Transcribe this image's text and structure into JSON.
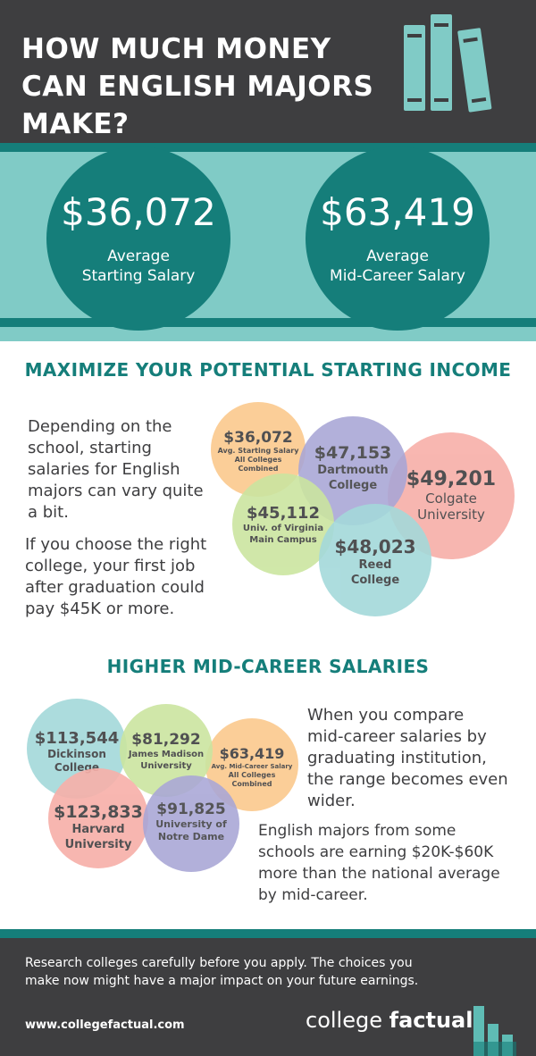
{
  "header": {
    "title": "HOW MUCH MONEY CAN ENGLISH MAJORS MAKE?"
  },
  "salaries": [
    {
      "amount": "$36,072",
      "label_line1": "Average",
      "label_line2": "Starting Salary"
    },
    {
      "amount": "$63,419",
      "label_line1": "Average",
      "label_line2": "Mid-Career Salary"
    }
  ],
  "starting": {
    "title": "MAXIMIZE YOUR POTENTIAL STARTING INCOME",
    "para1_lines": [
      "Depending on the",
      "school, starting",
      "salaries for English",
      "majors can vary quite",
      "a bit."
    ],
    "para2_lines": [
      "If you choose the right",
      "college, your first job",
      "after graduation could",
      "pay $45K or more."
    ],
    "bubbles": [
      {
        "amount": "$36,072",
        "name_lines": [
          "Avg. Starting Salary",
          "All Colleges",
          "Combined"
        ],
        "color": "#fbc98d"
      },
      {
        "amount": "$47,153",
        "name_lines": [
          "Dartmouth",
          "College"
        ],
        "color": "#a8a6d6"
      },
      {
        "amount": "$49,201",
        "name_lines": [
          "Colgate",
          "University"
        ],
        "color": "#f7afa8"
      },
      {
        "amount": "$45,112",
        "name_lines": [
          "Univ. of Virginia",
          "Main Campus"
        ],
        "color": "#cbe5a0"
      },
      {
        "amount": "$48,023",
        "name_lines": [
          "Reed",
          "College"
        ],
        "color": "#a4d9da"
      }
    ]
  },
  "midcareer": {
    "title": "HIGHER MID-CAREER SALARIES",
    "para1_lines": [
      "When you compare",
      "mid-career salaries by",
      "graduating institution,",
      "the range becomes even",
      "wider."
    ],
    "para2_lines": [
      "English majors from some",
      "schools are earning $20K-$60K",
      "more than the national average",
      "by mid-career."
    ],
    "bubbles": [
      {
        "amount": "$113,544",
        "name_lines": [
          "Dickinson",
          "College"
        ],
        "color": "#a4d9da"
      },
      {
        "amount": "$81,292",
        "name_lines": [
          "James Madison",
          "University"
        ],
        "color": "#cbe5a0"
      },
      {
        "amount": "$63,419",
        "name_lines": [
          "Avg. Mid-Career Salary",
          "All Colleges",
          "Combined"
        ],
        "color": "#fbc98d"
      },
      {
        "amount": "$123,833",
        "name_lines": [
          "Harvard",
          "University"
        ],
        "color": "#f7afa8"
      },
      {
        "amount": "$91,825",
        "name_lines": [
          "University of",
          "Notre Dame"
        ],
        "color": "#a8a6d6"
      }
    ]
  },
  "footer": {
    "text_line1": "Research colleges carefully before you apply. The choices you",
    "text_line2": "make now might have a major impact on your future earnings.",
    "url": "www.collegefactual.com",
    "brand_part1": "college",
    "brand_part2": "factual"
  },
  "colors": {
    "dark": "#3e3e40",
    "teal": "#157e7a",
    "light_teal": "#80cbc6"
  },
  "icons": {
    "books": "books-icon",
    "logo": "college-factual-logo-icon"
  }
}
